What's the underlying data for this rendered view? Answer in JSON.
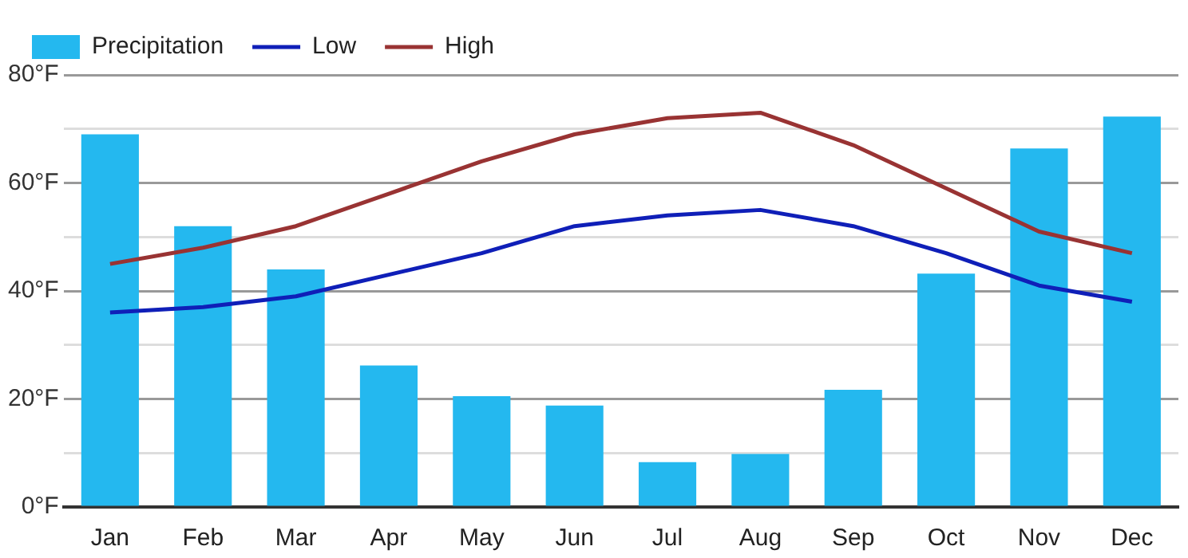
{
  "chart_data": {
    "type": "bar",
    "categories": [
      "Jan",
      "Feb",
      "Mar",
      "Apr",
      "May",
      "Jun",
      "Jul",
      "Aug",
      "Sep",
      "Oct",
      "Nov",
      "Dec"
    ],
    "series": [
      {
        "name": "Precipitation",
        "color": "#24b8ef",
        "values": [
          69,
          52,
          44,
          26.2,
          20.5,
          18.8,
          8.3,
          9.8,
          21.7,
          43.2,
          66.4,
          72.3
        ]
      },
      {
        "name": "Low",
        "type": "line",
        "color": "#0f1fb8",
        "values": [
          36,
          37,
          39,
          43,
          47,
          52,
          54,
          55,
          52,
          47,
          41,
          38
        ]
      },
      {
        "name": "High",
        "type": "line",
        "color": "#993333",
        "values": [
          45,
          48,
          52,
          58,
          64,
          69,
          72,
          73,
          67,
          59,
          51,
          47
        ]
      }
    ],
    "ylim": [
      0,
      80
    ],
    "yticks": [
      {
        "value": 0,
        "label": "0°F"
      },
      {
        "value": 10,
        "label": null
      },
      {
        "value": 20,
        "label": "20°F"
      },
      {
        "value": 30,
        "label": null
      },
      {
        "value": 40,
        "label": "40°F"
      },
      {
        "value": 50,
        "label": null
      },
      {
        "value": 60,
        "label": "60°F"
      },
      {
        "value": 70,
        "label": null
      },
      {
        "value": 80,
        "label": "80°F"
      }
    ],
    "grid": "y",
    "legend": "top left",
    "marker": "none",
    "line_style": "solid"
  }
}
